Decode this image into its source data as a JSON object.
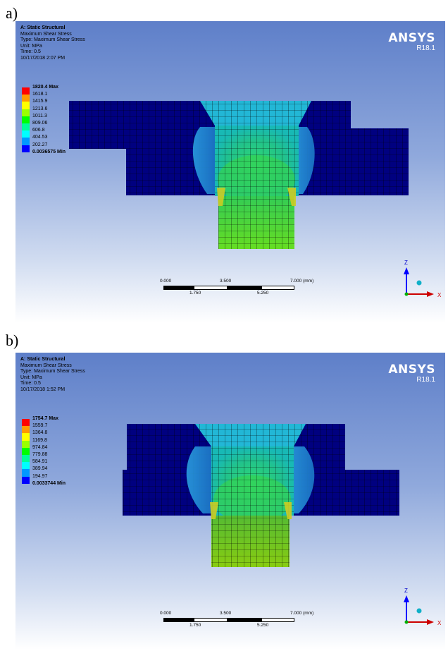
{
  "figure": {
    "panels": [
      {
        "label": "a)",
        "title": "A: Static Structural",
        "result_name": "Maximum Shear Stress",
        "type": "Type: Maximum Shear Stress",
        "unit": "Unit: MPa",
        "time": "Time: 0.5",
        "date": "10/17/2018 2:07 PM",
        "legend": [
          "1820.4 Max",
          "1618.1",
          "1415.9",
          "1213.6",
          "1011.3",
          "809.06",
          "606.8",
          "404.53",
          "202.27",
          "0.0036575 Min"
        ]
      },
      {
        "label": "b)",
        "title": "A: Static Structural",
        "result_name": "Maximum Shear Stress",
        "type": "Type: Maximum Shear Stress",
        "unit": "Unit: MPa",
        "time": "Time: 0.5",
        "date": "10/17/2018 1:52 PM",
        "legend": [
          "1754.7 Max",
          "1559.7",
          "1364.8",
          "1169.8",
          "974.84",
          "779.88",
          "584.91",
          "389.94",
          "194.97",
          "0.0033744 Min"
        ]
      }
    ],
    "brand": "ANSYS",
    "version": "R18.1",
    "scale_top": [
      "0.000",
      "3.500",
      "7.000 (mm)"
    ],
    "scale_bottom": [
      "1.750",
      "5.250"
    ],
    "axis_labels": {
      "z": "Z",
      "x": "X"
    },
    "legend_colors": [
      "#ff0000",
      "#ff9900",
      "#ffff00",
      "#99ff00",
      "#00ff00",
      "#00ff99",
      "#00ffff",
      "#0099ff",
      "#0000ff"
    ],
    "colors": {
      "plate": "#00007a",
      "mesh": "#000000",
      "axis_z": "#0000ff",
      "axis_x": "#ff0000",
      "axis_y": "#00c000"
    }
  }
}
